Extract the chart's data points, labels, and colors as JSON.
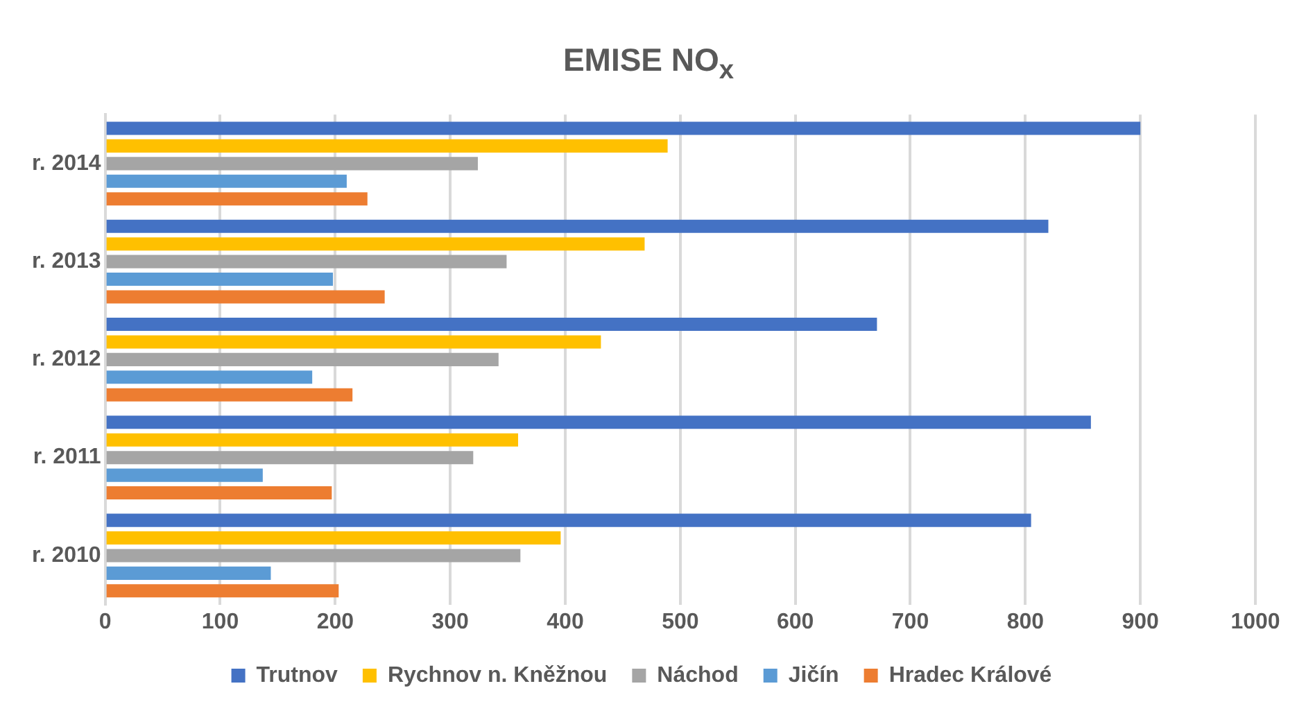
{
  "chart_data": {
    "type": "bar",
    "orientation": "horizontal",
    "title": "EMISE NO$_{x}$",
    "categories": [
      "r. 2014",
      "r. 2013",
      "r. 2012",
      "r. 2011",
      "r. 2010"
    ],
    "series": [
      {
        "name": "Trutnov",
        "color": "#4472c4",
        "values": [
          900,
          820,
          671,
          857,
          805
        ]
      },
      {
        "name": "Rychnov n. Kněžnou",
        "color": "#ffc000",
        "values": [
          489,
          469,
          431,
          359,
          396
        ]
      },
      {
        "name": "Náchod",
        "color": "#a5a5a5",
        "values": [
          324,
          349,
          342,
          320,
          361
        ]
      },
      {
        "name": "Jičín",
        "color": "#5b9bd5",
        "values": [
          210,
          198,
          180,
          137,
          144
        ]
      },
      {
        "name": "Hradec Králové",
        "color": "#ed7d31",
        "values": [
          228,
          243,
          215,
          197,
          203
        ]
      }
    ],
    "xlim": [
      0,
      1000
    ],
    "xticks": [
      0,
      100,
      200,
      300,
      400,
      500,
      600,
      700,
      800,
      900,
      1000
    ],
    "grid": "x",
    "legend": "bottom"
  }
}
